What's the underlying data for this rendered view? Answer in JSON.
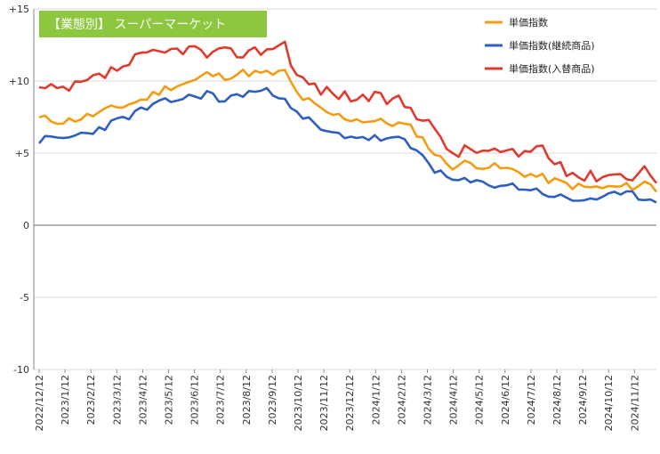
{
  "chart_data": {
    "type": "line",
    "title_badge": "【業態別】 スーパーマーケット",
    "ylim": [
      -10,
      15
    ],
    "y_ticks": [
      "+15",
      "+10",
      "+5",
      "0",
      "-5",
      "-10"
    ],
    "y_tick_values": [
      15,
      10,
      5,
      0,
      -5,
      -10
    ],
    "x_tick_labels": [
      "2022/12/12",
      "2023/1/12",
      "2023/2/12",
      "2023/3/12",
      "2023/4/12",
      "2023/5/12",
      "2023/6/12",
      "2023/7/12",
      "2023/8/12",
      "2023/9/12",
      "2023/10/12",
      "2023/11/12",
      "2023/12/12",
      "2024/1/12",
      "2024/2/12",
      "2024/3/12",
      "2024/4/12",
      "2024/5/12",
      "2024/6/12",
      "2024/7/12",
      "2024/8/12",
      "2024/9/12",
      "2024/10/12",
      "2024/11/12"
    ],
    "grid": true,
    "legend_position": "top-right",
    "colors": {
      "badge": "#8dc63f",
      "grid": "#d9d9d9",
      "axis": "#888888"
    },
    "series": [
      {
        "name": "単価指数",
        "color": "#f39c12",
        "anchors": [
          [
            0,
            7.4
          ],
          [
            1,
            7.2
          ],
          [
            2,
            7.6
          ],
          [
            4,
            8.7
          ],
          [
            5,
            9.6
          ],
          [
            5.5,
            9.8
          ],
          [
            6,
            10.0
          ],
          [
            6.5,
            10.5
          ],
          [
            7,
            10.3
          ],
          [
            8,
            10.6
          ],
          [
            8.5,
            10.5
          ],
          [
            9,
            10.5
          ],
          [
            9.5,
            10.6
          ],
          [
            10,
            9.0
          ],
          [
            10.5,
            8.5
          ],
          [
            11,
            7.8
          ],
          [
            12,
            7.4
          ],
          [
            13,
            7.2
          ],
          [
            14,
            7.0
          ],
          [
            14.5,
            6.6
          ],
          [
            15,
            5.6
          ],
          [
            15.4,
            4.7
          ],
          [
            16,
            4.1
          ],
          [
            16.5,
            4.3
          ],
          [
            17,
            4.2
          ],
          [
            18,
            3.9
          ],
          [
            19,
            3.5
          ],
          [
            20,
            3.0
          ],
          [
            20.5,
            2.8
          ],
          [
            21,
            2.6
          ],
          [
            22,
            2.6
          ],
          [
            23,
            2.7
          ],
          [
            23.5,
            3.0
          ],
          [
            24,
            2.2
          ]
        ],
        "wiggle": 0.3,
        "seed": 11
      },
      {
        "name": "単価指数(継続商品)",
        "color": "#2e5fc0",
        "anchors": [
          [
            0,
            5.9
          ],
          [
            1,
            6.0
          ],
          [
            2,
            6.5
          ],
          [
            3,
            7.2
          ],
          [
            4,
            8.0
          ],
          [
            5,
            8.6
          ],
          [
            5.5,
            8.8
          ],
          [
            6,
            8.9
          ],
          [
            6.5,
            9.2
          ],
          [
            7,
            8.6
          ],
          [
            8,
            9.2
          ],
          [
            8.5,
            9.3
          ],
          [
            9,
            9.2
          ],
          [
            9.5,
            9.0
          ],
          [
            10,
            7.5
          ],
          [
            10.5,
            7.2
          ],
          [
            11,
            6.4
          ],
          [
            12,
            6.2
          ],
          [
            13,
            6.0
          ],
          [
            14,
            5.9
          ],
          [
            14.5,
            5.2
          ],
          [
            15,
            4.6
          ],
          [
            15.4,
            3.6
          ],
          [
            16,
            3.1
          ],
          [
            16.5,
            3.0
          ],
          [
            17,
            2.9
          ],
          [
            18,
            2.8
          ],
          [
            19,
            2.5
          ],
          [
            20,
            2.0
          ],
          [
            20.5,
            1.7
          ],
          [
            21,
            1.8
          ],
          [
            22,
            2.0
          ],
          [
            23,
            2.1
          ],
          [
            24,
            1.6
          ]
        ],
        "wiggle": 0.3,
        "seed": 23
      },
      {
        "name": "単価指数(入替商品)",
        "color": "#e03a2e",
        "anchors": [
          [
            0,
            9.4
          ],
          [
            1,
            9.3
          ],
          [
            2,
            10.0
          ],
          [
            3,
            10.8
          ],
          [
            4,
            11.7
          ],
          [
            4.5,
            11.8
          ],
          [
            5,
            12.0
          ],
          [
            5.5,
            12.3
          ],
          [
            6,
            12.2
          ],
          [
            6.5,
            11.8
          ],
          [
            7,
            11.9
          ],
          [
            8,
            12.0
          ],
          [
            8.5,
            12.1
          ],
          [
            9,
            12.4
          ],
          [
            9.5,
            12.6
          ],
          [
            10,
            10.2
          ],
          [
            10.5,
            9.8
          ],
          [
            11,
            9.3
          ],
          [
            12,
            8.9
          ],
          [
            13,
            8.8
          ],
          [
            14,
            8.6
          ],
          [
            14.5,
            7.8
          ],
          [
            15,
            7.6
          ],
          [
            15.4,
            6.0
          ],
          [
            16,
            5.0
          ],
          [
            16.5,
            5.2
          ],
          [
            17,
            5.2
          ],
          [
            18,
            5.0
          ],
          [
            18.5,
            4.8
          ],
          [
            19,
            5.3
          ],
          [
            19.5,
            5.5
          ],
          [
            20,
            4.0
          ],
          [
            20.5,
            3.8
          ],
          [
            21,
            3.3
          ],
          [
            22,
            3.6
          ],
          [
            22.5,
            3.5
          ],
          [
            23,
            3.5
          ],
          [
            23.5,
            4.0
          ],
          [
            24,
            2.6
          ]
        ],
        "wiggle": 0.45,
        "seed": 37
      }
    ]
  }
}
